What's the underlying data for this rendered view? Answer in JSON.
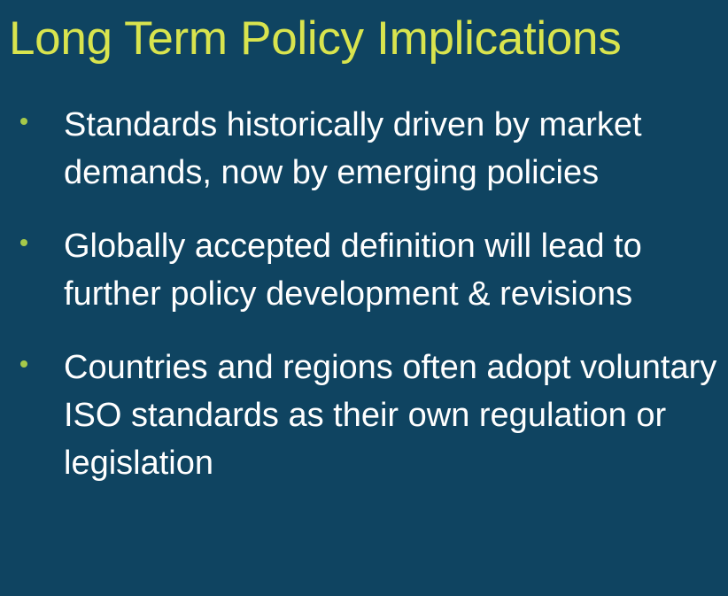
{
  "slide": {
    "title": "Long Term Policy Implications",
    "bullets": [
      {
        "text": "Standards historically driven by market demands, now by emerging policies"
      },
      {
        "text": "Globally accepted definition will lead to further policy development & revisions"
      },
      {
        "text": "Countries and regions often adopt voluntary ISO standards as their own regulation or legislation"
      }
    ],
    "colors": {
      "background": "#0f4461",
      "title": "#d9e44e",
      "bullet_marker": "#a6c94a",
      "body_text": "#ffffff"
    }
  }
}
